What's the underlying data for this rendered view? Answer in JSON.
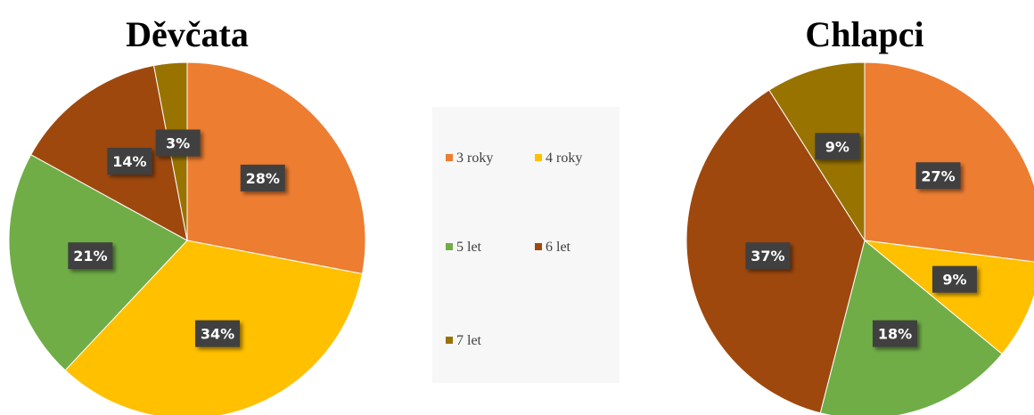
{
  "chart_data": [
    {
      "type": "pie",
      "title": "Děvčata",
      "categories": [
        "3 roky",
        "4 roky",
        "5 let",
        "6 let",
        "7 let"
      ],
      "values": [
        28,
        34,
        21,
        14,
        3
      ],
      "value_labels": [
        "28%",
        "34%",
        "21%",
        "14%",
        "3%"
      ],
      "colors": [
        "#ED7D31",
        "#FFC000",
        "#70AD47",
        "#9E480E",
        "#997300"
      ]
    },
    {
      "type": "pie",
      "title": "Chlapci",
      "categories": [
        "3 roky",
        "4 roky",
        "5 let",
        "6 let",
        "7 let"
      ],
      "values": [
        27,
        9,
        18,
        37,
        9
      ],
      "value_labels": [
        "27%",
        "9%",
        "18%",
        "37%",
        "9%"
      ],
      "colors": [
        "#ED7D31",
        "#FFC000",
        "#70AD47",
        "#9E480E",
        "#997300"
      ]
    }
  ]
}
